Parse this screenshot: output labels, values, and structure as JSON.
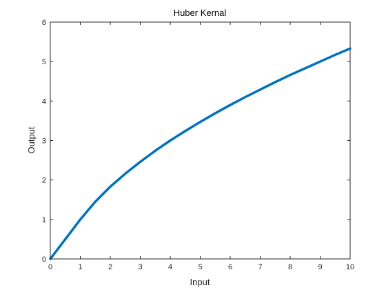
{
  "chart_data": {
    "type": "line",
    "title": "Huber Kernal",
    "xlabel": "Input",
    "ylabel": "Output",
    "xlim": [
      0,
      10
    ],
    "ylim": [
      0,
      6
    ],
    "xticks": [
      0,
      1,
      2,
      3,
      4,
      5,
      6,
      7,
      8,
      9,
      10
    ],
    "yticks": [
      0,
      1,
      2,
      3,
      4,
      5,
      6
    ],
    "grid": true,
    "series": [
      {
        "color": "#0072bd",
        "x": [
          0,
          0.25,
          0.5,
          0.75,
          1,
          1.5,
          2,
          2.5,
          3,
          3.5,
          4,
          4.5,
          5,
          5.5,
          6,
          6.5,
          7,
          7.5,
          8,
          8.5,
          9,
          9.5,
          10
        ],
        "y": [
          0,
          0.25,
          0.5,
          0.75,
          1.0,
          1.45,
          1.83,
          2.16,
          2.46,
          2.74,
          3.0,
          3.24,
          3.47,
          3.69,
          3.9,
          4.1,
          4.29,
          4.48,
          4.66,
          4.83,
          5.0,
          5.17,
          5.33
        ]
      }
    ]
  }
}
